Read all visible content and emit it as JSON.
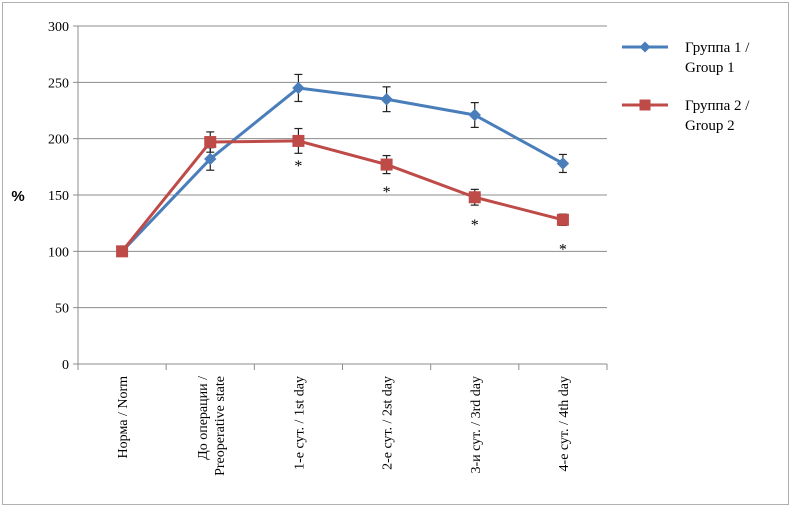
{
  "chart_data": {
    "type": "line",
    "title": "",
    "xlabel": "",
    "ylabel": "%",
    "ylim": [
      0,
      300
    ],
    "yticks": [
      0,
      50,
      100,
      150,
      200,
      250,
      300
    ],
    "grid": true,
    "legend_position": "right",
    "categories": [
      "Норма / Norm",
      "До операции / Preoperative state",
      "1-е сут. / 1st day",
      "2-е сут. / 2st day",
      "3-и сут. / 3rd day",
      "4-е сут. / 4th day"
    ],
    "category_lines": [
      [
        "Норма / Norm"
      ],
      [
        "До операции /",
        "Preoperative state"
      ],
      [
        "1-е сут. / 1st day"
      ],
      [
        "2-е сут. / 2st day"
      ],
      [
        "3-и сут. / 3rd day"
      ],
      [
        "4-е сут. / 4th day"
      ]
    ],
    "series": [
      {
        "name": "Группа 1 / Group 1",
        "name_lines": [
          "Группа 1 /",
          "Group 1"
        ],
        "color": "#4a7ebb",
        "marker": "diamond",
        "values": [
          100,
          182,
          245,
          235,
          221,
          178
        ],
        "errors": [
          0,
          10,
          12,
          11,
          11,
          8
        ]
      },
      {
        "name": "Группа 2 / Group 2",
        "name_lines": [
          "Группа 2 /",
          "Group 2"
        ],
        "color": "#be4b48",
        "marker": "square",
        "values": [
          100,
          197,
          198,
          177,
          148,
          128
        ],
        "errors": [
          0,
          9,
          11,
          8,
          7,
          5
        ]
      }
    ],
    "annotations": [
      {
        "text": "*",
        "category_index": 2,
        "y": 180
      },
      {
        "text": "*",
        "category_index": 3,
        "y": 157
      },
      {
        "text": "*",
        "category_index": 4,
        "y": 128
      },
      {
        "text": "*",
        "category_index": 5,
        "y": 106
      }
    ]
  }
}
